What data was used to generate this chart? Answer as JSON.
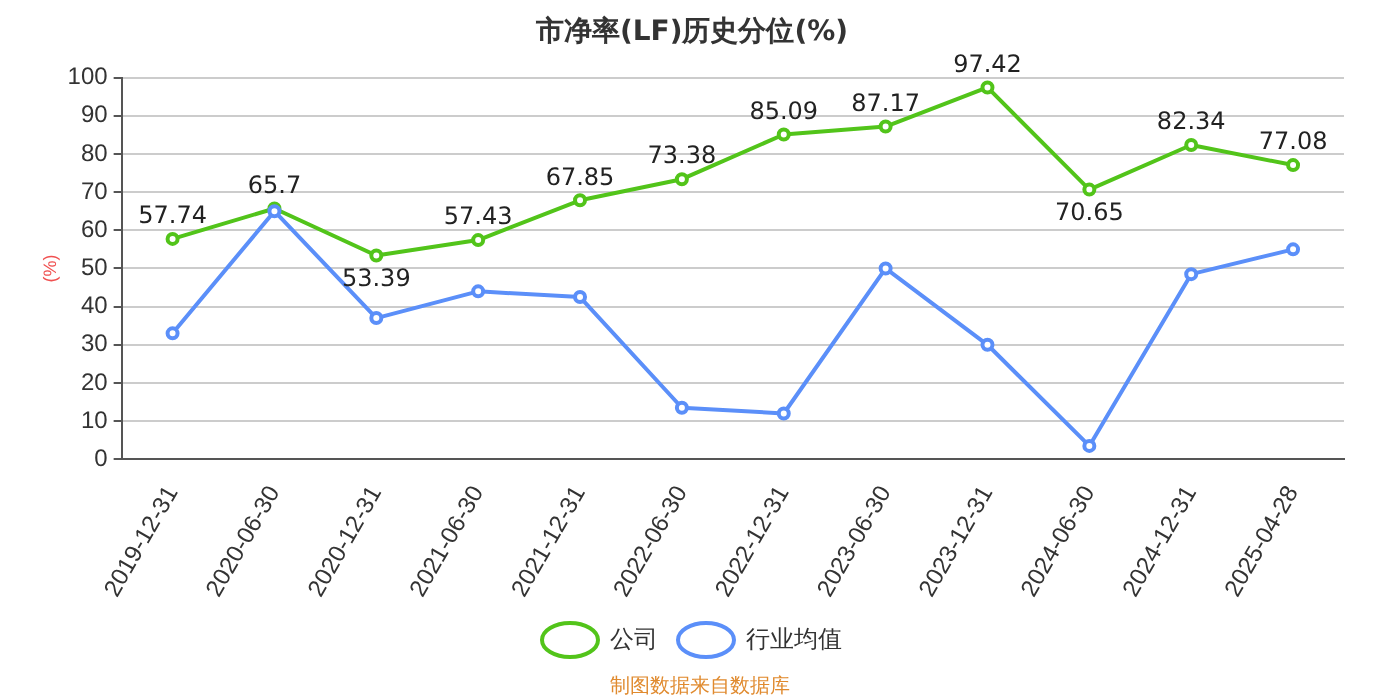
{
  "chart_data": {
    "type": "line",
    "title": "市净率(LF)历史分位(%)",
    "ylabel": "(%)",
    "categories": [
      "2019-12-31",
      "2020-06-30",
      "2020-12-31",
      "2021-06-30",
      "2021-12-31",
      "2022-06-30",
      "2022-12-31",
      "2023-06-30",
      "2023-12-31",
      "2024-06-30",
      "2024-12-31",
      "2025-04-28"
    ],
    "series": [
      {
        "name": "公司",
        "color": "#52c41a",
        "values": [
          57.74,
          65.7,
          53.39,
          57.43,
          67.85,
          73.38,
          85.09,
          87.17,
          97.42,
          70.65,
          82.34,
          77.08
        ],
        "value_labels": [
          "57.74",
          "65.7",
          "53.39",
          "57.43",
          "67.85",
          "73.38",
          "85.09",
          "87.17",
          "97.42",
          "70.65",
          "82.34",
          "77.08"
        ]
      },
      {
        "name": "行业均值",
        "color": "#5b8ff9",
        "values": [
          33,
          65,
          37,
          44,
          42.5,
          13.5,
          12,
          50,
          30,
          3.5,
          48.5,
          55
        ]
      }
    ],
    "ylim": [
      0,
      100
    ],
    "yticks": [
      0,
      10,
      20,
      30,
      40,
      50,
      60,
      70,
      80,
      90,
      100
    ],
    "grid": "y",
    "legend": "bottom",
    "marker": "circle",
    "line_style": "solid",
    "annotations": [
      "制图数据来自数据库"
    ]
  }
}
